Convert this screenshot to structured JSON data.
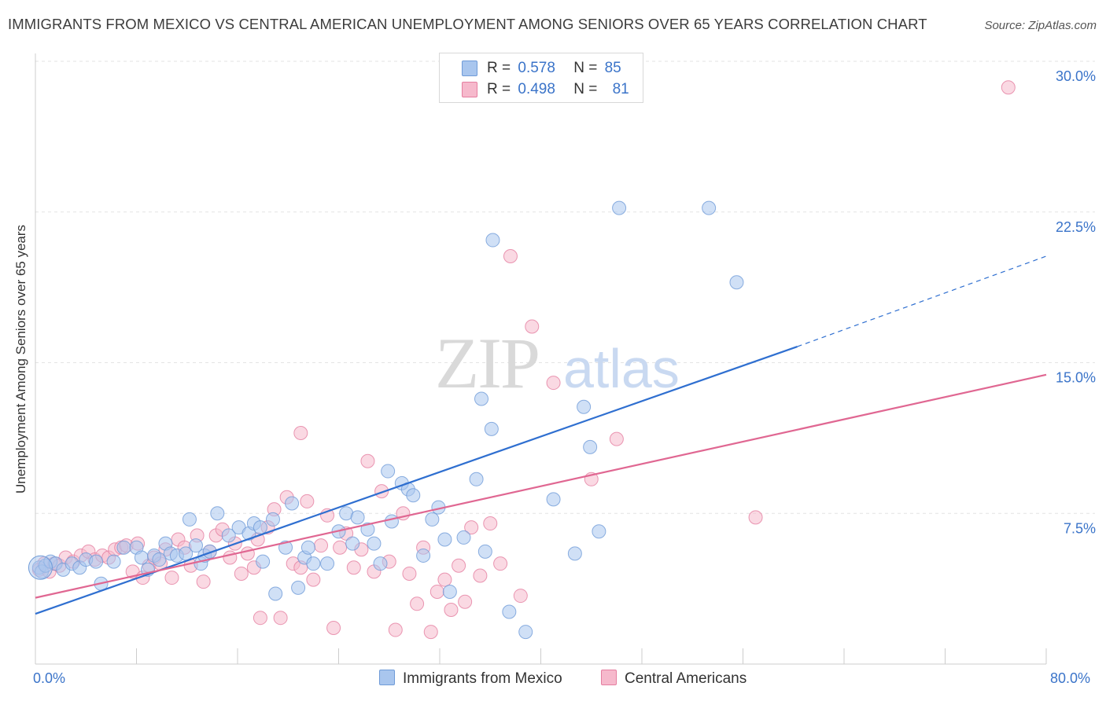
{
  "title": "IMMIGRANTS FROM MEXICO VS CENTRAL AMERICAN UNEMPLOYMENT AMONG SENIORS OVER 65 YEARS CORRELATION CHART",
  "source": "Source: ZipAtlas.com",
  "watermark": {
    "zip": "ZIP",
    "atlas": "atlas"
  },
  "legend": {
    "rows": [
      {
        "r_label": "R =",
        "r_value": "0.578",
        "n_label": "N =",
        "n_value": "85"
      },
      {
        "r_label": "R =",
        "r_value": "0.498",
        "n_label": "N =",
        "n_value": "81"
      }
    ]
  },
  "colors": {
    "blue_fill": "#a9c6ee",
    "blue_stroke": "#6f9bd8",
    "blue_line": "#2f6fd0",
    "pink_fill": "#f6b9cc",
    "pink_stroke": "#e57ea0",
    "pink_line": "#e06792",
    "accent_text": "#3b74c9"
  },
  "chart_data": {
    "type": "scatter",
    "title": "IMMIGRANTS FROM MEXICO VS CENTRAL AMERICAN UNEMPLOYMENT AMONG SENIORS OVER 65 YEARS CORRELATION CHART",
    "xlabel": "",
    "ylabel": "Unemployment Among Seniors over 65 years",
    "xlim": [
      0,
      80
    ],
    "ylim": [
      0,
      30
    ],
    "x_tick_labels": [
      "0.0%",
      "80.0%"
    ],
    "y_ticks": [
      7.5,
      15.0,
      22.5,
      30.0
    ],
    "y_tick_labels": [
      "7.5%",
      "15.0%",
      "22.5%",
      "30.0%"
    ],
    "grid": "horizontal dashed",
    "legend_position": "top-center and bottom",
    "series": [
      {
        "name": "Immigrants from Mexico",
        "color": "#a9c6ee",
        "R": 0.578,
        "N": 85,
        "trend": {
          "x": [
            0,
            60.3
          ],
          "y": [
            2.5,
            15.8
          ],
          "dashed_to": [
            80,
            20.3
          ]
        },
        "points": [
          [
            0.3,
            4.8
          ],
          [
            0.5,
            4.6
          ],
          [
            0.8,
            4.9
          ],
          [
            1.2,
            5.1
          ],
          [
            1.6,
            5.0
          ],
          [
            2.2,
            4.7
          ],
          [
            2.9,
            5.0
          ],
          [
            3.5,
            4.8
          ],
          [
            4.0,
            5.2
          ],
          [
            4.8,
            5.1
          ],
          [
            5.2,
            4.0
          ],
          [
            6.2,
            5.1
          ],
          [
            7.0,
            5.8
          ],
          [
            8.0,
            5.8
          ],
          [
            8.4,
            5.3
          ],
          [
            8.9,
            4.7
          ],
          [
            9.4,
            5.4
          ],
          [
            9.8,
            5.2
          ],
          [
            10.3,
            6.0
          ],
          [
            10.7,
            5.5
          ],
          [
            11.2,
            5.4
          ],
          [
            11.9,
            5.5
          ],
          [
            12.2,
            7.2
          ],
          [
            12.7,
            5.9
          ],
          [
            13.1,
            5.0
          ],
          [
            13.4,
            5.4
          ],
          [
            13.8,
            5.6
          ],
          [
            14.4,
            7.5
          ],
          [
            15.3,
            6.4
          ],
          [
            16.1,
            6.8
          ],
          [
            16.9,
            6.5
          ],
          [
            17.3,
            7.0
          ],
          [
            17.8,
            6.8
          ],
          [
            18.0,
            5.1
          ],
          [
            18.8,
            7.2
          ],
          [
            19.0,
            3.5
          ],
          [
            19.8,
            5.8
          ],
          [
            20.3,
            8.0
          ],
          [
            20.8,
            3.8
          ],
          [
            21.3,
            5.3
          ],
          [
            21.6,
            5.8
          ],
          [
            22.0,
            5.0
          ],
          [
            23.1,
            5.0
          ],
          [
            24.0,
            6.6
          ],
          [
            24.6,
            7.5
          ],
          [
            25.1,
            6.0
          ],
          [
            25.5,
            7.3
          ],
          [
            26.3,
            6.7
          ],
          [
            26.8,
            6.0
          ],
          [
            27.3,
            5.0
          ],
          [
            27.9,
            9.6
          ],
          [
            28.2,
            7.1
          ],
          [
            29.0,
            9.0
          ],
          [
            29.5,
            8.7
          ],
          [
            29.9,
            8.4
          ],
          [
            30.7,
            5.4
          ],
          [
            31.4,
            7.2
          ],
          [
            31.9,
            7.8
          ],
          [
            32.4,
            6.2
          ],
          [
            32.8,
            3.6
          ],
          [
            33.9,
            6.3
          ],
          [
            34.9,
            9.2
          ],
          [
            35.6,
            5.6
          ],
          [
            35.3,
            13.2
          ],
          [
            36.1,
            11.7
          ],
          [
            36.2,
            21.1
          ],
          [
            37.5,
            2.6
          ],
          [
            38.8,
            1.6
          ],
          [
            41.0,
            8.2
          ],
          [
            42.7,
            5.5
          ],
          [
            43.4,
            12.8
          ],
          [
            43.9,
            10.8
          ],
          [
            44.6,
            6.6
          ],
          [
            46.2,
            22.7
          ],
          [
            53.3,
            22.7
          ],
          [
            55.5,
            19.0
          ]
        ]
      },
      {
        "name": "Central Americans",
        "color": "#f6b9cc",
        "R": 0.498,
        "N": 81,
        "trend": {
          "x": [
            0,
            80
          ],
          "y": [
            3.3,
            14.4
          ]
        },
        "points": [
          [
            0.3,
            4.7
          ],
          [
            0.7,
            5.0
          ],
          [
            1.1,
            4.6
          ],
          [
            1.5,
            5.0
          ],
          [
            1.9,
            4.9
          ],
          [
            2.4,
            5.3
          ],
          [
            3.0,
            5.1
          ],
          [
            3.6,
            5.4
          ],
          [
            4.2,
            5.6
          ],
          [
            4.7,
            5.2
          ],
          [
            5.3,
            5.4
          ],
          [
            5.8,
            5.3
          ],
          [
            6.3,
            5.7
          ],
          [
            6.8,
            5.8
          ],
          [
            7.2,
            5.9
          ],
          [
            7.7,
            4.6
          ],
          [
            8.1,
            6.0
          ],
          [
            8.5,
            4.3
          ],
          [
            9.0,
            4.9
          ],
          [
            9.4,
            5.3
          ],
          [
            9.9,
            5.0
          ],
          [
            10.3,
            5.7
          ],
          [
            10.8,
            4.3
          ],
          [
            11.3,
            6.2
          ],
          [
            11.8,
            5.8
          ],
          [
            12.3,
            4.9
          ],
          [
            12.8,
            6.4
          ],
          [
            13.3,
            4.1
          ],
          [
            13.8,
            5.6
          ],
          [
            14.3,
            6.4
          ],
          [
            14.8,
            6.7
          ],
          [
            15.4,
            5.3
          ],
          [
            15.8,
            6.0
          ],
          [
            16.3,
            4.5
          ],
          [
            16.8,
            5.5
          ],
          [
            17.3,
            4.8
          ],
          [
            17.8,
            2.3
          ],
          [
            18.4,
            6.8
          ],
          [
            18.9,
            7.7
          ],
          [
            19.4,
            2.3
          ],
          [
            19.9,
            8.3
          ],
          [
            20.4,
            5.0
          ],
          [
            21.0,
            4.8
          ],
          [
            21.5,
            8.1
          ],
          [
            22.0,
            4.2
          ],
          [
            22.6,
            5.9
          ],
          [
            23.1,
            7.4
          ],
          [
            23.6,
            1.8
          ],
          [
            24.1,
            5.8
          ],
          [
            24.6,
            6.5
          ],
          [
            25.2,
            4.8
          ],
          [
            25.8,
            5.7
          ],
          [
            26.3,
            10.1
          ],
          [
            26.8,
            4.6
          ],
          [
            27.4,
            8.6
          ],
          [
            28.0,
            5.1
          ],
          [
            28.5,
            1.7
          ],
          [
            29.1,
            7.5
          ],
          [
            29.6,
            4.5
          ],
          [
            30.2,
            3.0
          ],
          [
            30.7,
            5.8
          ],
          [
            31.3,
            1.6
          ],
          [
            31.8,
            3.6
          ],
          [
            32.4,
            4.2
          ],
          [
            32.9,
            2.7
          ],
          [
            33.5,
            4.9
          ],
          [
            34.0,
            3.1
          ],
          [
            34.5,
            6.8
          ],
          [
            35.2,
            4.4
          ],
          [
            36.0,
            7.0
          ],
          [
            36.8,
            5.0
          ],
          [
            37.6,
            20.3
          ],
          [
            38.4,
            3.4
          ],
          [
            39.3,
            16.8
          ],
          [
            41.0,
            14.0
          ],
          [
            44.0,
            9.2
          ],
          [
            46.0,
            11.2
          ],
          [
            57.0,
            7.3
          ],
          [
            77.0,
            28.7
          ],
          [
            17.6,
            6.2
          ],
          [
            21.0,
            11.5
          ]
        ]
      }
    ]
  }
}
